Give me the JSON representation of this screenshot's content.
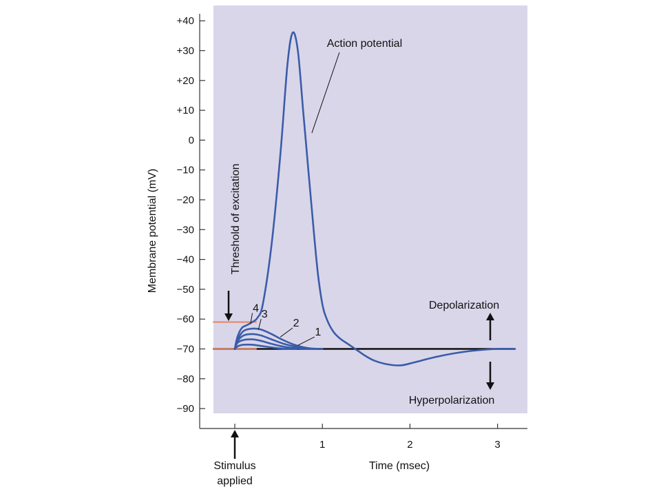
{
  "chart_data": {
    "type": "line",
    "title": "",
    "xlabel": "Time (msec)",
    "ylabel": "Membrane potential (mV)",
    "xlim": [
      -0.4,
      3.2
    ],
    "ylim": [
      -95,
      42
    ],
    "x_ticks": [
      0,
      1,
      2,
      3
    ],
    "x_tick_labels": [
      "",
      "1",
      "2",
      "3"
    ],
    "y_ticks": [
      40,
      30,
      20,
      10,
      0,
      -10,
      -20,
      -30,
      -40,
      -50,
      -60,
      -70,
      -80,
      -90
    ],
    "y_tick_labels": [
      "+40",
      "+30",
      "+20",
      "+10",
      "0",
      "−10",
      "−20",
      "−30",
      "−40",
      "−50",
      "−60",
      "−70",
      "−80",
      "−90"
    ],
    "grid": false,
    "colors": {
      "plot_background": "#d9d6ea",
      "curve": "#3a5ca8",
      "baseline": "#111111",
      "threshold_line": "#e8835a"
    },
    "reference_lines": [
      {
        "y": -70,
        "x_from": -0.25,
        "x_to": 3.2,
        "role": "resting"
      },
      {
        "y": -61,
        "x_from": -0.25,
        "x_to": 0.25,
        "role": "threshold"
      },
      {
        "y": -70,
        "x_from": -0.25,
        "x_to": 0.25,
        "role": "threshold-base"
      }
    ],
    "series": [
      {
        "label": "",
        "x": [
          0,
          0.03,
          0.08,
          0.14,
          0.2,
          0.26,
          0.32,
          0.42,
          0.52,
          0.6,
          0.66,
          0.72,
          0.78,
          0.84,
          0.9,
          0.95,
          1.0,
          1.05,
          1.12,
          1.2,
          1.3,
          1.4,
          1.5,
          1.6,
          1.75,
          1.9,
          2.05,
          2.25,
          2.5,
          2.75,
          3.0,
          3.2
        ],
        "y": [
          -70,
          -66,
          -63,
          -62,
          -61,
          -59.5,
          -55,
          -35,
          -5,
          25,
          36,
          30,
          10,
          -10,
          -30,
          -45,
          -55,
          -60,
          -64,
          -66.5,
          -68.5,
          -70.5,
          -72.5,
          -74,
          -75.2,
          -75.5,
          -74.5,
          -73,
          -71.5,
          -70.5,
          -70,
          -70
        ]
      },
      {
        "label": "",
        "x": [
          0,
          0.03,
          0.1,
          0.2,
          0.3,
          0.42,
          0.55,
          0.7,
          0.85,
          1.0
        ],
        "y": [
          -70,
          -67,
          -64,
          -63.2,
          -63.5,
          -65,
          -67,
          -68.8,
          -69.8,
          -70
        ]
      },
      {
        "label": "",
        "x": [
          0,
          0.03,
          0.1,
          0.2,
          0.3,
          0.42,
          0.55,
          0.7,
          0.85,
          1.0
        ],
        "y": [
          -70,
          -67.5,
          -65.5,
          -65,
          -65.5,
          -66.8,
          -68.2,
          -69.3,
          -69.9,
          -70
        ]
      },
      {
        "label": "",
        "x": [
          0,
          0.03,
          0.1,
          0.2,
          0.3,
          0.42,
          0.55,
          0.7,
          0.85
        ],
        "y": [
          -70,
          -68,
          -67,
          -66.8,
          -67.3,
          -68.3,
          -69.2,
          -69.8,
          -70
        ]
      },
      {
        "label": "",
        "x": [
          0,
          0.04,
          0.1,
          0.2,
          0.3,
          0.42,
          0.55,
          0.7
        ],
        "y": [
          -70,
          -69,
          -68.6,
          -68.6,
          -69,
          -69.5,
          -69.9,
          -70
        ]
      }
    ],
    "annotations": {
      "action_potential": {
        "text": "Action potential",
        "x": 1.35,
        "y": 16,
        "points_to": [
          0.88,
          1
        ]
      },
      "curve_labels": [
        {
          "text": "4",
          "x": 0.24,
          "y": -57.5,
          "points_to": [
            0.18,
            -61.5
          ]
        },
        {
          "text": "3",
          "x": 0.34,
          "y": -59.5,
          "points_to": [
            0.27,
            -63.5
          ]
        },
        {
          "text": "2",
          "x": 0.7,
          "y": -62.5,
          "points_to": [
            0.52,
            -66
          ]
        },
        {
          "text": "1",
          "x": 0.95,
          "y": -65.5,
          "points_to": [
            0.72,
            -68.8
          ]
        }
      ],
      "threshold": {
        "text": "Threshold of excitation"
      },
      "depolarization": {
        "text": "Depolarization"
      },
      "hyperpolarization": {
        "text": "Hyperpolarization"
      },
      "stimulus": {
        "line1": "Stimulus",
        "line2": "applied"
      }
    }
  }
}
